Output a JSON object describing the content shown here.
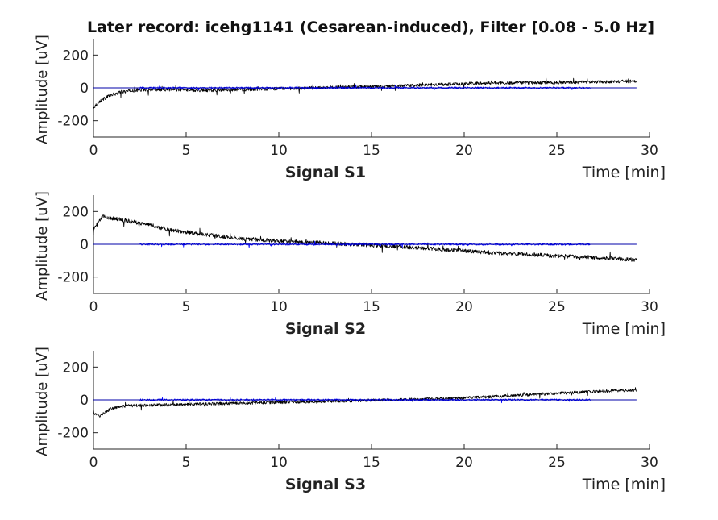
{
  "title": "Later record: icehg1141 (Cesarean-induced), Filter [0.08 - 5.0 Hz]",
  "colors": {
    "raw": "#000000",
    "filtered": "#0000ff",
    "axis": "#262626",
    "zero_line": "#0000aa"
  },
  "chart_data": [
    {
      "type": "line",
      "xlabel": "Signal S1",
      "xunit_label": "Time [min]",
      "ylabel": "Amplitude [uV]",
      "xlim": [
        0,
        30
      ],
      "ylim": [
        -300,
        300
      ],
      "xticks": [
        0,
        5,
        10,
        15,
        20,
        25,
        30
      ],
      "yticks": [
        200,
        0,
        -200
      ],
      "grid": false,
      "series": [
        {
          "color": "#000000",
          "noise": 10,
          "spike_every": 37,
          "x": [
            0,
            0.3,
            0.8,
            1.5,
            2.5,
            4,
            6,
            8,
            10,
            12,
            14,
            16,
            18,
            20,
            22,
            24,
            26,
            28,
            29.3
          ],
          "y": [
            -120,
            -85,
            -50,
            -25,
            -12,
            -10,
            -15,
            -10,
            -5,
            0,
            5,
            10,
            18,
            25,
            30,
            32,
            35,
            38,
            40
          ]
        },
        {
          "color": "#0000ff",
          "noise": 6,
          "spike_every": 53,
          "x": [
            2.5,
            5,
            10,
            15,
            20,
            25,
            26.8
          ],
          "y": [
            0,
            0,
            0,
            0,
            0,
            0,
            0
          ]
        }
      ]
    },
    {
      "type": "line",
      "xlabel": "Signal S2",
      "xunit_label": "Time [min]",
      "ylabel": "Amplitude [uV]",
      "xlim": [
        0,
        30
      ],
      "ylim": [
        -300,
        300
      ],
      "xticks": [
        0,
        5,
        10,
        15,
        20,
        25,
        30
      ],
      "yticks": [
        200,
        0,
        -200
      ],
      "grid": false,
      "series": [
        {
          "color": "#000000",
          "noise": 12,
          "spike_every": 41,
          "x": [
            0,
            0.5,
            1.5,
            3,
            4,
            6,
            8,
            10,
            12,
            14,
            16,
            18,
            20,
            22,
            24,
            26,
            28,
            29.3
          ],
          "y": [
            90,
            170,
            150,
            120,
            90,
            60,
            35,
            20,
            10,
            0,
            -10,
            -25,
            -40,
            -55,
            -65,
            -75,
            -85,
            -95
          ]
        },
        {
          "color": "#0000ff",
          "noise": 6,
          "spike_every": 59,
          "x": [
            2.5,
            5,
            10,
            15,
            20,
            25,
            26.8
          ],
          "y": [
            0,
            0,
            0,
            0,
            0,
            0,
            0
          ]
        }
      ]
    },
    {
      "type": "line",
      "xlabel": "Signal S3",
      "xunit_label": "Time [min]",
      "ylabel": "Amplitude [uV]",
      "xlim": [
        0,
        30
      ],
      "ylim": [
        -300,
        300
      ],
      "xticks": [
        0,
        5,
        10,
        15,
        20,
        25,
        30
      ],
      "yticks": [
        200,
        0,
        -200
      ],
      "grid": false,
      "series": [
        {
          "color": "#000000",
          "noise": 9,
          "spike_every": 43,
          "x": [
            0,
            0.3,
            1,
            2,
            4,
            6,
            8,
            10,
            12,
            14,
            16,
            18,
            20,
            22,
            24,
            26,
            28,
            29.3
          ],
          "y": [
            -80,
            -100,
            -50,
            -35,
            -30,
            -25,
            -20,
            -15,
            -10,
            -5,
            0,
            5,
            12,
            22,
            35,
            45,
            55,
            58
          ]
        },
        {
          "color": "#0000ff",
          "noise": 6,
          "spike_every": 61,
          "x": [
            2.5,
            5,
            10,
            15,
            20,
            25,
            26.8
          ],
          "y": [
            0,
            0,
            0,
            0,
            0,
            0,
            0
          ]
        }
      ]
    }
  ]
}
